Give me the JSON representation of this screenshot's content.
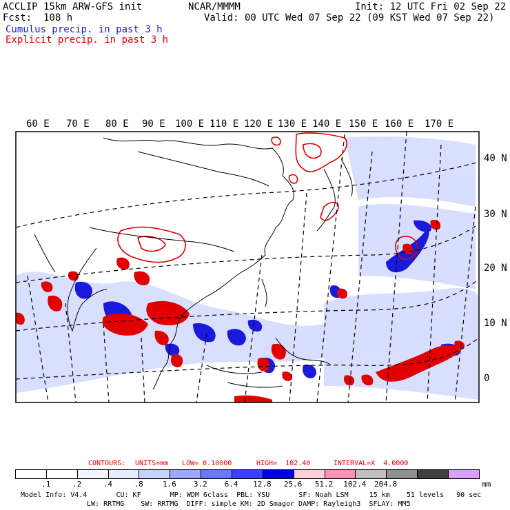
{
  "header": {
    "model_title": "ACCLIP 15km ARW-GFS init",
    "forecast": "Fcst:  108 h",
    "center": "NCAR/MMMM",
    "init": "Init: 12 UTC Fri 02 Sep 22",
    "valid": "Valid: 00 UTC Wed 07 Sep 22 (09 KST Wed 07 Sep 22)",
    "legend_cumulus": "Cumulus precip. in past 3 h",
    "legend_explicit": "Explicit precip. in past 3 h"
  },
  "colors": {
    "cumulus": "#1a1adc",
    "explicit": "#e00000",
    "coast": "#000000"
  },
  "map": {
    "lon_labels": [
      "60 E",
      "70 E",
      "80 E",
      "90 E",
      "100 E",
      "110 E",
      "120 E",
      "130 E",
      "140 E",
      "150 E",
      "160 E",
      "170 E"
    ],
    "lat_labels": [
      "40 N",
      "30 N",
      "20 N",
      "10 N",
      "0"
    ]
  },
  "contours": {
    "label": "CONTOURS:",
    "units": "UNITS=mm",
    "low": "LOW= 0.10000",
    "high": "HIGH=  102.40",
    "interval": "INTERVAL=X  4.0000"
  },
  "colorbar": {
    "colors": [
      "#ffffff",
      "#ffffff",
      "#f4f6ff",
      "#e6ecff",
      "#c8d4ff",
      "#9aa8ff",
      "#6a78ff",
      "#3a40ff",
      "#0000e8",
      "#ffd0d8",
      "#ff90b8",
      "#c0c0c0",
      "#909090",
      "#404040",
      "#d8a0ff"
    ],
    "ticks": [
      ".1",
      ".2",
      ".4",
      ".8",
      "1.6",
      "3.2",
      "6.4",
      "12.8",
      "25.6",
      "51.2",
      "102.4",
      "204.8"
    ],
    "unit": "mm"
  },
  "footer": {
    "line1": "Model Info: V4.4       CU: KF       MP: WDM 6class  PBL: YSU       SF: Noah LSM     15 km    51 levels   90 sec",
    "line2": "LW: RRTMG    SW: RRTMG  DIFF: simple KM: 2D Smagor DAMP: Rayleigh3  SFLAY: MM5"
  }
}
